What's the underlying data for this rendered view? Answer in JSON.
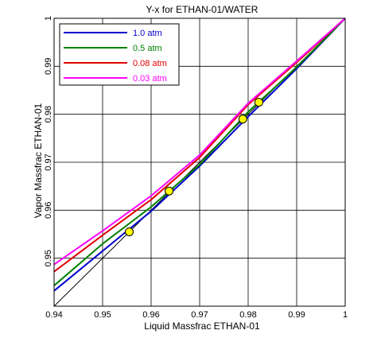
{
  "chart_data": {
    "type": "line",
    "title": "Y-x for ETHAN-01/WATER",
    "xlabel": "Liquid Massfrac ETHAN-01",
    "ylabel": "Vapor Massfrac ETHAN-01",
    "xlim": [
      0.94,
      1.0
    ],
    "ylim": [
      0.94,
      1.0
    ],
    "x_ticks": [
      "0.94",
      "0.95",
      "0.96",
      "0.97",
      "0.98",
      "0.99",
      "1"
    ],
    "y_ticks": [
      "0.95",
      "0.96",
      "0.97",
      "0.98",
      "0.99",
      "1"
    ],
    "grid": true,
    "legend_position": "top-left",
    "series": [
      {
        "name": "1.0 atm",
        "color": "#0000cc",
        "points": [
          [
            0.94,
            0.9432
          ],
          [
            0.95,
            0.9515
          ],
          [
            0.96,
            0.9598
          ],
          [
            0.97,
            0.9692
          ],
          [
            0.98,
            0.9795
          ],
          [
            0.99,
            0.9895
          ],
          [
            1.0,
            1.0
          ]
        ]
      },
      {
        "name": "0.5 atm",
        "color": "#008000",
        "points": [
          [
            0.94,
            0.9443
          ],
          [
            0.95,
            0.953
          ],
          [
            0.96,
            0.9607
          ],
          [
            0.97,
            0.9695
          ],
          [
            0.98,
            0.9805
          ],
          [
            0.99,
            0.9898
          ],
          [
            1.0,
            1.0
          ]
        ]
      },
      {
        "name": "0.08 atm",
        "color": "#e00000",
        "points": [
          [
            0.94,
            0.9472
          ],
          [
            0.95,
            0.9548
          ],
          [
            0.96,
            0.9622
          ],
          [
            0.97,
            0.971
          ],
          [
            0.98,
            0.982
          ],
          [
            0.99,
            0.9908
          ],
          [
            1.0,
            1.0
          ]
        ]
      },
      {
        "name": "0.03 atm",
        "color": "#ff00ff",
        "points": [
          [
            0.94,
            0.9487
          ],
          [
            0.95,
            0.9557
          ],
          [
            0.96,
            0.963
          ],
          [
            0.97,
            0.9715
          ],
          [
            0.98,
            0.9823
          ],
          [
            0.99,
            0.9911
          ],
          [
            1.0,
            1.0
          ]
        ]
      }
    ],
    "reference_line": {
      "color": "#000000",
      "points": [
        [
          0.94,
          0.94
        ],
        [
          1.0,
          1.0
        ]
      ]
    },
    "azeotrope_markers": [
      {
        "x": 0.9555,
        "y": 0.9555
      },
      {
        "x": 0.9637,
        "y": 0.964
      },
      {
        "x": 0.9789,
        "y": 0.979
      },
      {
        "x": 0.9822,
        "y": 0.9825
      }
    ],
    "marker_color": "#ffff00"
  }
}
